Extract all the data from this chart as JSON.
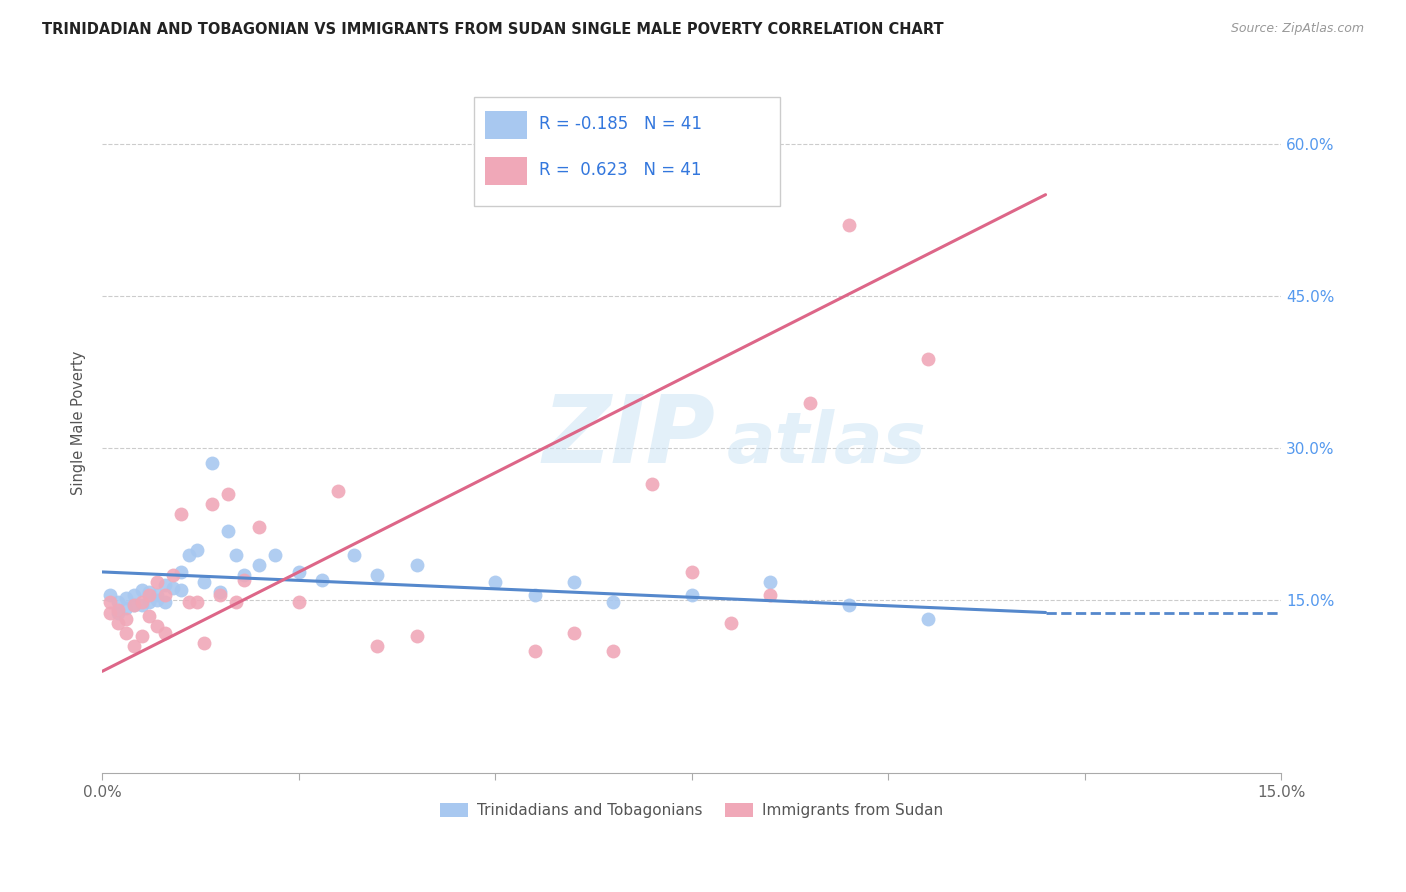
{
  "title": "TRINIDADIAN AND TOBAGONIAN VS IMMIGRANTS FROM SUDAN SINGLE MALE POVERTY CORRELATION CHART",
  "source": "Source: ZipAtlas.com",
  "ylabel": "Single Male Poverty",
  "yaxis_labels": [
    "60.0%",
    "45.0%",
    "30.0%",
    "15.0%"
  ],
  "yaxis_values": [
    0.6,
    0.45,
    0.3,
    0.15
  ],
  "xlim": [
    0.0,
    0.15
  ],
  "ylim": [
    -0.02,
    0.67
  ],
  "blue_R": "-0.185",
  "blue_N": "41",
  "pink_R": "0.623",
  "pink_N": "41",
  "legend_label_blue": "Trinidadians and Tobagonians",
  "legend_label_pink": "Immigrants from Sudan",
  "blue_color": "#a8c8f0",
  "pink_color": "#f0a8b8",
  "blue_line_color": "#5588cc",
  "pink_line_color": "#dd6688",
  "watermark_zip": "ZIP",
  "watermark_atlas": "atlas",
  "background_color": "#ffffff",
  "blue_scatter_x": [
    0.001,
    0.002,
    0.002,
    0.003,
    0.003,
    0.004,
    0.004,
    0.005,
    0.005,
    0.006,
    0.006,
    0.007,
    0.007,
    0.008,
    0.008,
    0.009,
    0.01,
    0.01,
    0.011,
    0.012,
    0.013,
    0.014,
    0.015,
    0.016,
    0.017,
    0.018,
    0.02,
    0.022,
    0.025,
    0.028,
    0.032,
    0.035,
    0.04,
    0.05,
    0.055,
    0.06,
    0.065,
    0.075,
    0.085,
    0.095,
    0.105
  ],
  "blue_scatter_y": [
    0.155,
    0.148,
    0.138,
    0.152,
    0.142,
    0.145,
    0.155,
    0.16,
    0.145,
    0.148,
    0.158,
    0.15,
    0.155,
    0.165,
    0.148,
    0.162,
    0.16,
    0.178,
    0.195,
    0.2,
    0.168,
    0.285,
    0.158,
    0.218,
    0.195,
    0.175,
    0.185,
    0.195,
    0.178,
    0.17,
    0.195,
    0.175,
    0.185,
    0.168,
    0.155,
    0.168,
    0.148,
    0.155,
    0.168,
    0.145,
    0.132
  ],
  "pink_scatter_x": [
    0.001,
    0.001,
    0.002,
    0.002,
    0.003,
    0.003,
    0.004,
    0.004,
    0.005,
    0.005,
    0.006,
    0.006,
    0.007,
    0.007,
    0.008,
    0.008,
    0.009,
    0.01,
    0.011,
    0.012,
    0.013,
    0.014,
    0.015,
    0.016,
    0.017,
    0.018,
    0.02,
    0.025,
    0.03,
    0.035,
    0.04,
    0.055,
    0.06,
    0.065,
    0.07,
    0.075,
    0.08,
    0.085,
    0.09,
    0.095,
    0.105
  ],
  "pink_scatter_y": [
    0.148,
    0.138,
    0.14,
    0.128,
    0.132,
    0.118,
    0.145,
    0.105,
    0.148,
    0.115,
    0.155,
    0.135,
    0.125,
    0.168,
    0.155,
    0.118,
    0.175,
    0.235,
    0.148,
    0.148,
    0.108,
    0.245,
    0.155,
    0.255,
    0.148,
    0.17,
    0.222,
    0.148,
    0.258,
    0.105,
    0.115,
    0.1,
    0.118,
    0.1,
    0.265,
    0.178,
    0.128,
    0.155,
    0.345,
    0.52,
    0.388
  ]
}
